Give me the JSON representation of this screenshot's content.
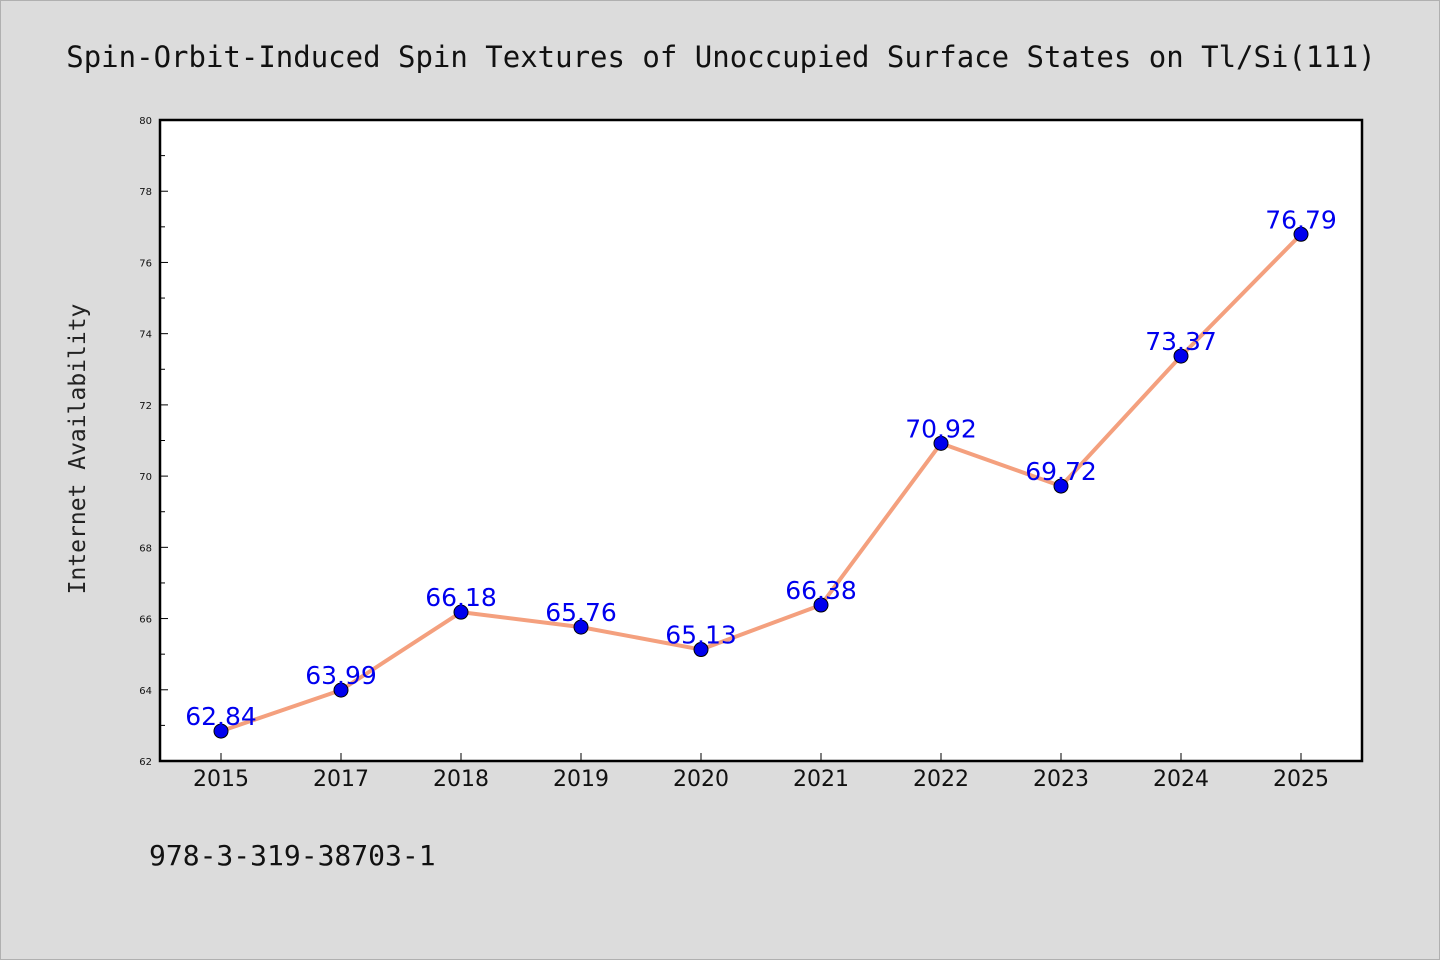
{
  "chart_data": {
    "type": "line",
    "title": "Spin-Orbit-Induced Spin Textures of Unoccupied Surface States on Tl/Si(111)",
    "xlabel": "",
    "ylabel": "Internet Availability",
    "categories": [
      "2015",
      "2017",
      "2018",
      "2019",
      "2020",
      "2021",
      "2022",
      "2023",
      "2024",
      "2025"
    ],
    "series": [
      {
        "values": [
          62.84,
          63.99,
          66.18,
          65.76,
          65.13,
          66.38,
          70.92,
          69.72,
          73.37,
          76.79
        ],
        "labels": [
          "62.84",
          "63.99",
          "66.18",
          "65.76",
          "65.13",
          "66.38",
          "70.92",
          "69.72",
          "73.37",
          "76.79"
        ],
        "line_color": "#f4a07e",
        "marker_color": "#0000ee"
      }
    ],
    "ylim": [
      62,
      80
    ],
    "yticks": [
      "62",
      "64",
      "66",
      "68",
      "70",
      "72",
      "74",
      "76",
      "78",
      "80"
    ],
    "grid": false,
    "legend": "none"
  },
  "footnote": "978-3-319-38703-1"
}
